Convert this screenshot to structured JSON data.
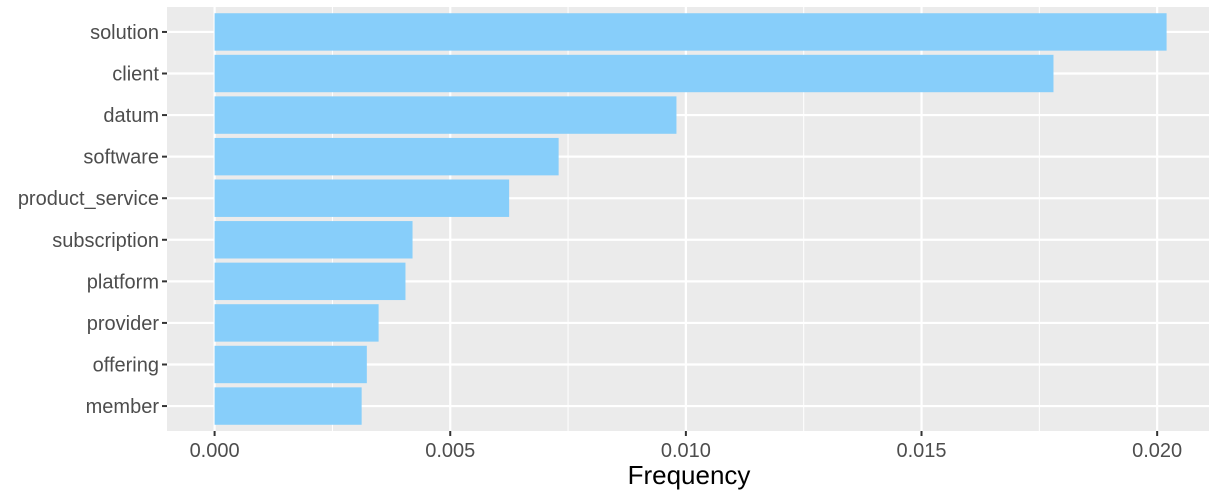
{
  "chart_data": {
    "type": "bar",
    "orientation": "horizontal",
    "categories": [
      "solution",
      "client",
      "datum",
      "software",
      "product_service",
      "subscription",
      "platform",
      "provider",
      "offering",
      "member"
    ],
    "values": [
      0.0202,
      0.0178,
      0.0098,
      0.0073,
      0.00625,
      0.0042,
      0.00405,
      0.00348,
      0.00323,
      0.00312
    ],
    "xlabel": "Frequency",
    "ylabel": "",
    "xlim": [
      -0.00101,
      0.0211
    ],
    "xticks": [
      0.0,
      0.005,
      0.01,
      0.015,
      0.02
    ],
    "xtick_labels": [
      "0.000",
      "0.005",
      "0.010",
      "0.015",
      "0.020"
    ],
    "grid": true,
    "colors": {
      "bar": "#87CEFA",
      "panel": "#EBEBEB",
      "grid_major": "#FFFFFF",
      "text": "#4D4D4D",
      "title": "#000000"
    }
  }
}
